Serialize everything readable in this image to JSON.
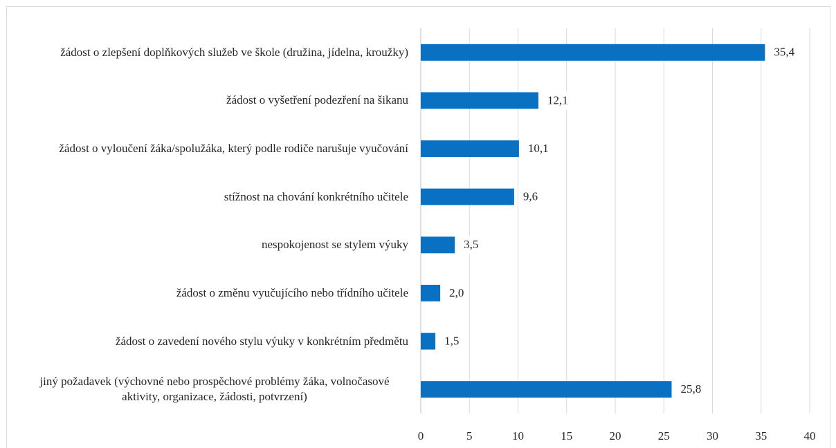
{
  "chart_data": {
    "type": "bar",
    "orientation": "horizontal",
    "categories": [
      "žádost o zlepšení doplňkových služeb ve škole (družina, jídelna, kroužky)",
      "žádost o vyšetření podezření na šikanu",
      "žádost o vyloučení žáka/spolužáka, který podle rodiče narušuje vyučování",
      "stížnost na chování konkrétního učitele",
      "nespokojenost se stylem výuky",
      "žádost o změnu vyučujícího nebo třídního učitele",
      "žádost o zavedení nového stylu výuky v konkrétním předmětu",
      "jiný požadavek (výchovné nebo prospěchové problémy žáka, volnočasové aktivity, organizace, žádosti, potvrzení)"
    ],
    "values": [
      35.4,
      12.1,
      10.1,
      9.6,
      3.5,
      2.0,
      1.5,
      25.8
    ],
    "value_labels": [
      "35,4",
      "12,1",
      "10,1",
      "9,6",
      "3,5",
      "2,0",
      "1,5",
      "25,8"
    ],
    "color": "#0a70c2",
    "xlim": [
      0,
      40
    ],
    "xticks": [
      0,
      5,
      10,
      15,
      20,
      25,
      30,
      35,
      40
    ],
    "grid": true
  }
}
